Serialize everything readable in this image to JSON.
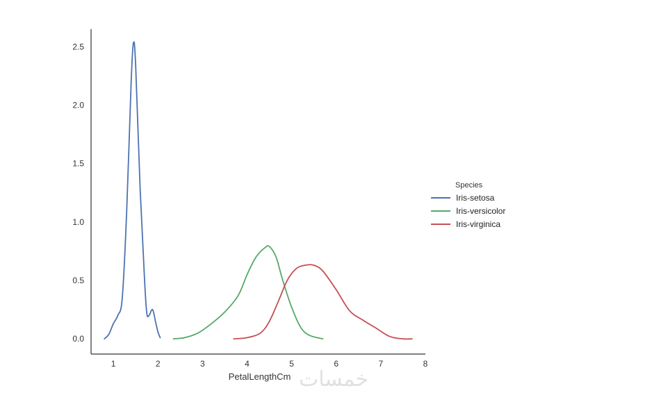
{
  "chart_data": {
    "type": "line",
    "title": "",
    "xlabel": "PetalLengthCm",
    "ylabel": "",
    "xlim": [
      0.5,
      8
    ],
    "ylim": [
      -0.13,
      2.65
    ],
    "x_ticks": [
      1,
      2,
      3,
      4,
      5,
      6,
      7,
      8
    ],
    "y_ticks": [
      0.0,
      0.5,
      1.0,
      1.5,
      2.0,
      2.5
    ],
    "y_tick_labels": [
      "0.0",
      "0.5",
      "1.0",
      "1.5",
      "2.0",
      "2.5"
    ],
    "grid": false,
    "legend": {
      "title": "Species",
      "placement": "right"
    },
    "series": [
      {
        "name": "Iris-setosa",
        "color": "#4c72b0",
        "points": [
          [
            0.8,
            0.0
          ],
          [
            0.9,
            0.04
          ],
          [
            1.0,
            0.13
          ],
          [
            1.1,
            0.2
          ],
          [
            1.2,
            0.35
          ],
          [
            1.3,
            1.1
          ],
          [
            1.4,
            2.2
          ],
          [
            1.45,
            2.53
          ],
          [
            1.5,
            2.35
          ],
          [
            1.6,
            1.3
          ],
          [
            1.7,
            0.5
          ],
          [
            1.75,
            0.22
          ],
          [
            1.8,
            0.2
          ],
          [
            1.88,
            0.25
          ],
          [
            1.95,
            0.14
          ],
          [
            2.0,
            0.06
          ],
          [
            2.05,
            0.01
          ]
        ]
      },
      {
        "name": "Iris-versicolor",
        "color": "#55a868",
        "points": [
          [
            2.35,
            0.0
          ],
          [
            2.6,
            0.01
          ],
          [
            2.9,
            0.05
          ],
          [
            3.2,
            0.13
          ],
          [
            3.5,
            0.23
          ],
          [
            3.8,
            0.37
          ],
          [
            4.0,
            0.55
          ],
          [
            4.2,
            0.7
          ],
          [
            4.4,
            0.78
          ],
          [
            4.5,
            0.79
          ],
          [
            4.65,
            0.7
          ],
          [
            4.8,
            0.5
          ],
          [
            5.0,
            0.27
          ],
          [
            5.2,
            0.1
          ],
          [
            5.4,
            0.03
          ],
          [
            5.7,
            0.0
          ]
        ]
      },
      {
        "name": "Iris-virginica",
        "color": "#c44e52",
        "points": [
          [
            3.7,
            0.0
          ],
          [
            4.0,
            0.01
          ],
          [
            4.3,
            0.05
          ],
          [
            4.5,
            0.15
          ],
          [
            4.7,
            0.32
          ],
          [
            4.9,
            0.5
          ],
          [
            5.1,
            0.6
          ],
          [
            5.3,
            0.63
          ],
          [
            5.5,
            0.63
          ],
          [
            5.7,
            0.58
          ],
          [
            6.0,
            0.42
          ],
          [
            6.3,
            0.24
          ],
          [
            6.6,
            0.16
          ],
          [
            6.9,
            0.09
          ],
          [
            7.2,
            0.02
          ],
          [
            7.5,
            0.0
          ],
          [
            7.7,
            0.0
          ]
        ]
      }
    ]
  },
  "watermark_text": "خمسات"
}
